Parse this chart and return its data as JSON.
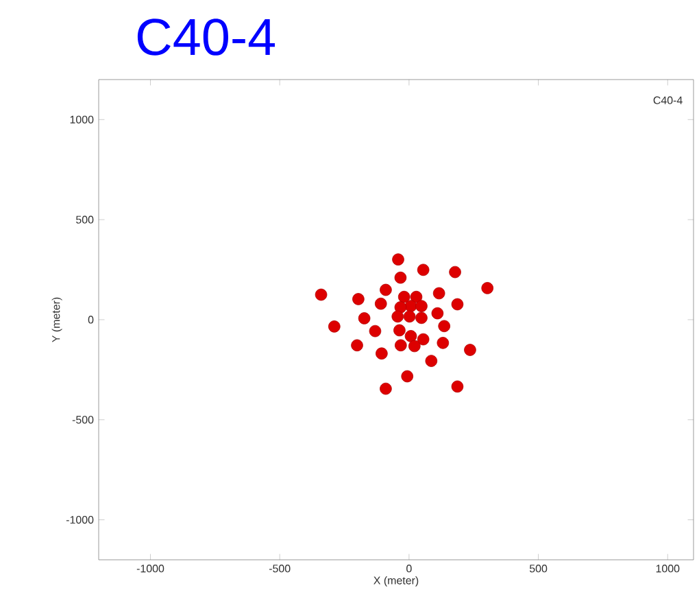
{
  "chart_data": {
    "type": "scatter",
    "title": "C40-4",
    "xlabel": "X (meter)",
    "ylabel": "Y (meter)",
    "annotations": [
      "C40-4"
    ],
    "xlim": [
      -1200,
      1100
    ],
    "ylim": [
      -1200,
      1200
    ],
    "xticks": [
      -1000,
      -500,
      0,
      500,
      1000
    ],
    "yticks": [
      -1000,
      -500,
      0,
      500,
      1000
    ],
    "grid": false,
    "marker": "circle",
    "series": [
      {
        "color": "#dd0000",
        "x": [
          -42,
          55,
          178,
          303,
          -340,
          -196,
          -90,
          -33,
          116,
          -109,
          -19,
          28,
          7,
          48,
          -33,
          187,
          -44,
          2,
          48,
          110,
          -173,
          -289,
          -131,
          -37,
          136,
          7,
          55,
          -201,
          -32,
          21,
          131,
          -106,
          236,
          86,
          -7,
          -90,
          187
        ],
        "values": [
          301,
          249,
          238,
          158,
          125,
          103,
          149,
          210,
          132,
          80,
          114,
          114,
          68,
          68,
          62,
          77,
          16,
          16,
          9,
          32,
          7,
          -34,
          -57,
          -53,
          -32,
          -82,
          -98,
          -128,
          -128,
          -132,
          -116,
          -169,
          -151,
          -206,
          -283,
          -345,
          -334
        ]
      }
    ]
  }
}
